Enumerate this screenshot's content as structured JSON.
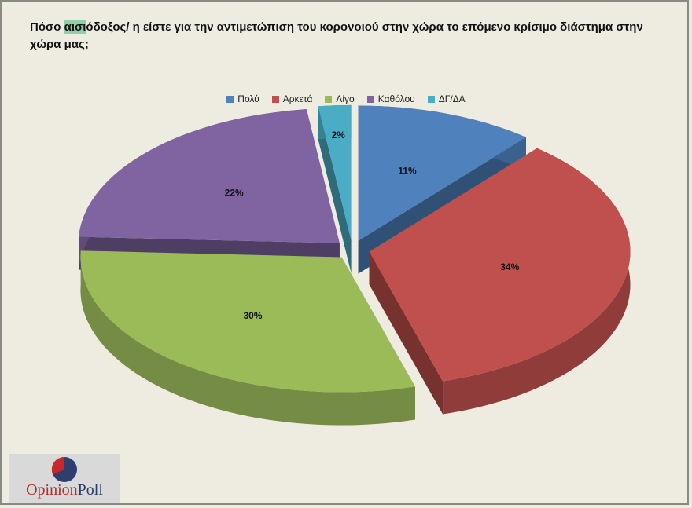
{
  "title": {
    "pre": "Πόσο ",
    "highlight": "αισι",
    "post": "όδοξος/ η είστε για την αντιμετώπιση του κορονοιού στην χώρα το επόμενο κρίσιμο διάστημα στην χώρα μας;"
  },
  "logo": {
    "opinion": "Opinion",
    "poll": "Poll"
  },
  "chart_data": {
    "type": "pie",
    "title": "Πόσο αισιόδοξος/ η είστε για την αντιμετώπιση του κορονοιού στην χώρα το επόμενο κρίσιμο διάστημα στην χώρα μας;",
    "legend_position": "top",
    "exploded": true,
    "three_d": true,
    "slices": [
      {
        "label": "Πολύ",
        "value": 11,
        "value_label": "11%",
        "color": "#4f81bd"
      },
      {
        "label": "Αρκετά",
        "value": 34,
        "value_label": "34%",
        "color": "#c0504d"
      },
      {
        "label": "Λίγο",
        "value": 30,
        "value_label": "30%",
        "color": "#9bbb59"
      },
      {
        "label": "Καθόλου",
        "value": 22,
        "value_label": "22%",
        "color": "#8064a2"
      },
      {
        "label": "ΔΓ/ΔΑ",
        "value": 2,
        "value_label": "2%",
        "color": "#4bacc6"
      }
    ]
  }
}
